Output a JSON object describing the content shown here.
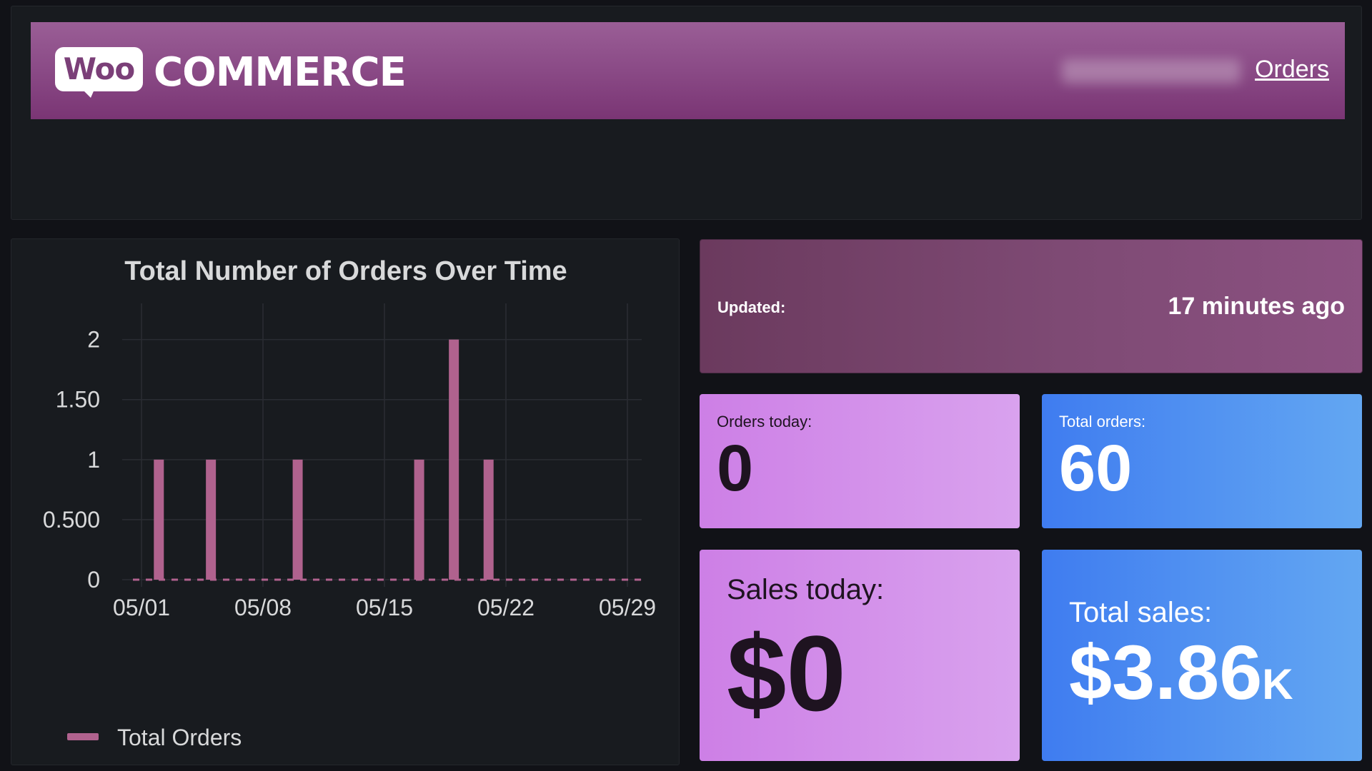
{
  "header": {
    "logo_woo": "Woo",
    "logo_commerce": "COMMERCE",
    "orders_link": "Orders"
  },
  "chart_data": {
    "type": "bar",
    "title": "Total Number of Orders Over Time",
    "xlabel": "",
    "ylabel": "",
    "x_ticks": [
      "05/01",
      "05/08",
      "05/15",
      "05/22",
      "05/29"
    ],
    "y_ticks": [
      "0",
      "0.500",
      "1",
      "1.50",
      "2"
    ],
    "ylim": [
      0,
      2.2
    ],
    "grid": true,
    "legend": "bottom-left",
    "series": [
      {
        "name": "Total Orders",
        "color": "#b0628e",
        "points": [
          {
            "x": "05/02",
            "y": 1
          },
          {
            "x": "05/05",
            "y": 1
          },
          {
            "x": "05/10",
            "y": 1
          },
          {
            "x": "05/17",
            "y": 1
          },
          {
            "x": "05/19",
            "y": 2
          },
          {
            "x": "05/21",
            "y": 1
          }
        ]
      }
    ]
  },
  "updated": {
    "label": "Updated:",
    "value": "17 minutes ago"
  },
  "orders_today": {
    "label": "Orders today:",
    "value": "0"
  },
  "total_orders": {
    "label": "Total orders:",
    "value": "60"
  },
  "sales_today": {
    "label": "Sales today:",
    "value": "$0"
  },
  "total_sales": {
    "label": "Total sales:",
    "value": "$3.86",
    "unit": "K"
  }
}
